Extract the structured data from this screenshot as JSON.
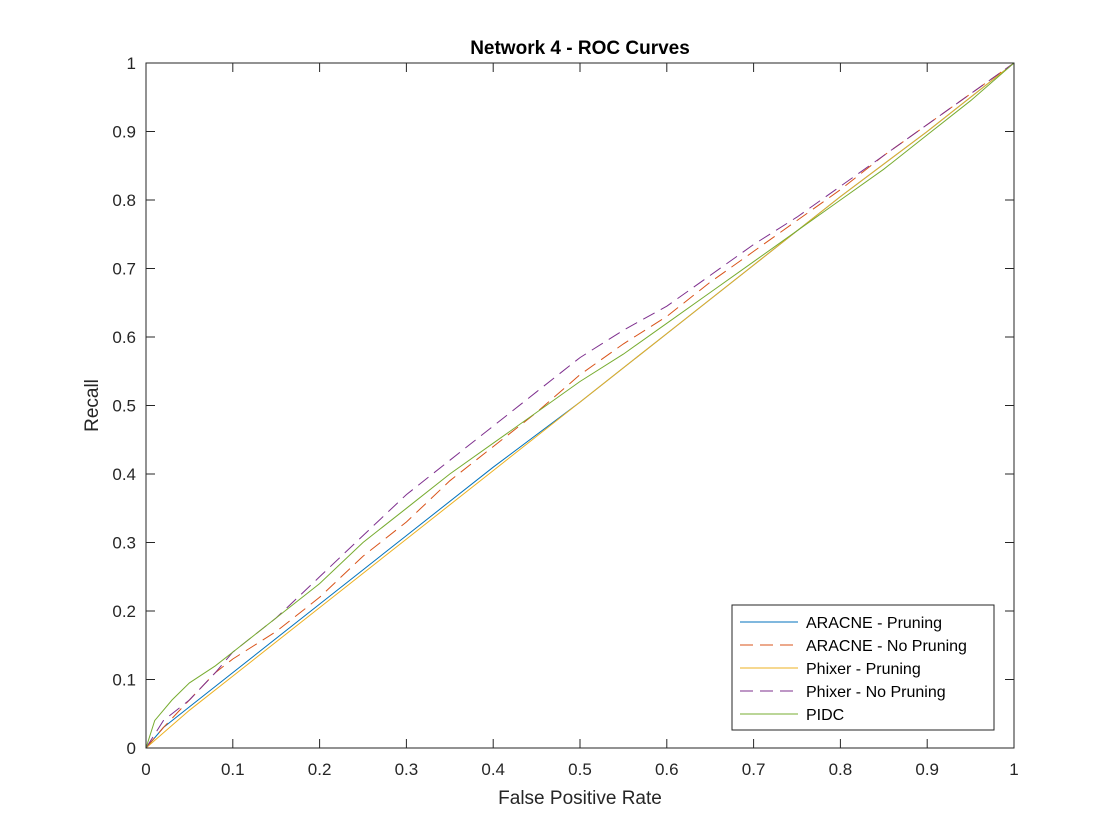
{
  "chart_data": {
    "type": "line",
    "title": "Network 4 - ROC Curves",
    "xlabel": "False Positive Rate",
    "ylabel": "Recall",
    "xlim": [
      0,
      1
    ],
    "ylim": [
      0,
      1
    ],
    "xticks": [
      0,
      0.1,
      0.2,
      0.3,
      0.4,
      0.5,
      0.6,
      0.7,
      0.8,
      0.9,
      1
    ],
    "yticks": [
      0,
      0.1,
      0.2,
      0.3,
      0.4,
      0.5,
      0.6,
      0.7,
      0.8,
      0.9,
      1
    ],
    "xtick_labels": [
      "0",
      "0.1",
      "0.2",
      "0.3",
      "0.4",
      "0.5",
      "0.6",
      "0.7",
      "0.8",
      "0.9",
      "1"
    ],
    "ytick_labels": [
      "0",
      "0.1",
      "0.2",
      "0.3",
      "0.4",
      "0.5",
      "0.6",
      "0.7",
      "0.8",
      "0.9",
      "1"
    ],
    "grid": false,
    "legend_position": "bottom-right",
    "series": [
      {
        "name": "ARACNE - Pruning",
        "color": "#0072BD",
        "dash": "solid",
        "x": [
          0,
          0.02,
          0.05,
          0.1,
          0.2,
          0.3,
          0.4,
          0.5,
          0.6,
          0.7,
          0.8,
          0.9,
          1
        ],
        "y": [
          0,
          0.03,
          0.06,
          0.11,
          0.21,
          0.31,
          0.41,
          0.505,
          0.605,
          0.705,
          0.805,
          0.9,
          1
        ]
      },
      {
        "name": "ARACNE - No Pruning",
        "color": "#D95319",
        "dash": "dashed",
        "x": [
          0,
          0.02,
          0.05,
          0.08,
          0.1,
          0.15,
          0.2,
          0.25,
          0.3,
          0.35,
          0.4,
          0.45,
          0.5,
          0.55,
          0.6,
          0.65,
          0.7,
          0.75,
          0.8,
          0.85,
          0.9,
          0.95,
          1
        ],
        "y": [
          0,
          0.03,
          0.07,
          0.11,
          0.13,
          0.17,
          0.22,
          0.28,
          0.33,
          0.39,
          0.44,
          0.49,
          0.545,
          0.59,
          0.63,
          0.68,
          0.725,
          0.77,
          0.815,
          0.865,
          0.91,
          0.955,
          1
        ]
      },
      {
        "name": "Phixer - Pruning",
        "color": "#EDB120",
        "dash": "solid",
        "x": [
          0,
          0.05,
          0.1,
          0.2,
          0.3,
          0.4,
          0.5,
          0.6,
          0.7,
          0.8,
          0.9,
          1
        ],
        "y": [
          0,
          0.055,
          0.105,
          0.205,
          0.305,
          0.405,
          0.505,
          0.605,
          0.705,
          0.805,
          0.9,
          1
        ]
      },
      {
        "name": "Phixer - No Pruning",
        "color": "#7E2F8E",
        "dash": "dashed",
        "x": [
          0,
          0.02,
          0.05,
          0.08,
          0.1,
          0.15,
          0.2,
          0.25,
          0.3,
          0.35,
          0.4,
          0.45,
          0.5,
          0.55,
          0.6,
          0.65,
          0.7,
          0.75,
          0.8,
          0.85,
          0.9,
          0.95,
          1
        ],
        "y": [
          0,
          0.04,
          0.07,
          0.11,
          0.14,
          0.19,
          0.25,
          0.31,
          0.37,
          0.42,
          0.47,
          0.52,
          0.57,
          0.61,
          0.645,
          0.69,
          0.735,
          0.775,
          0.82,
          0.865,
          0.91,
          0.955,
          1
        ]
      },
      {
        "name": "PIDC",
        "color": "#77AC30",
        "dash": "solid",
        "x": [
          0,
          0.01,
          0.03,
          0.05,
          0.08,
          0.1,
          0.15,
          0.2,
          0.25,
          0.3,
          0.35,
          0.4,
          0.45,
          0.5,
          0.55,
          0.6,
          0.65,
          0.7,
          0.75,
          0.8,
          0.85,
          0.9,
          0.95,
          1
        ],
        "y": [
          0,
          0.04,
          0.07,
          0.095,
          0.12,
          0.14,
          0.19,
          0.24,
          0.3,
          0.35,
          0.4,
          0.445,
          0.49,
          0.535,
          0.575,
          0.62,
          0.665,
          0.71,
          0.755,
          0.8,
          0.845,
          0.895,
          0.945,
          1
        ]
      }
    ]
  }
}
